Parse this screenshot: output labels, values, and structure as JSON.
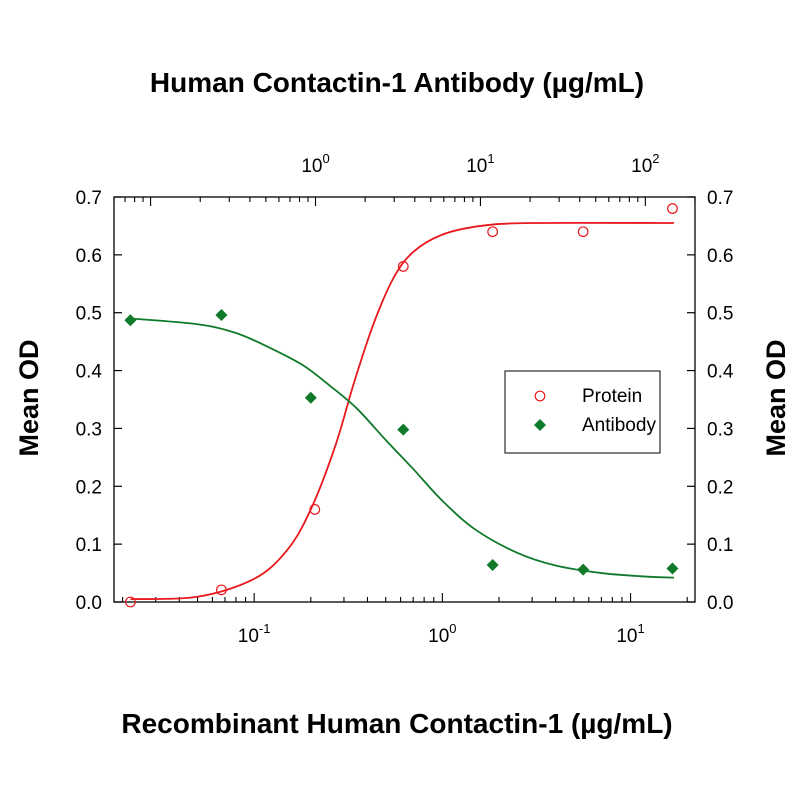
{
  "chart_data": {
    "type": "scatter",
    "title": "Human Contactin-1 Antibody (µg/mL)",
    "xlabel": "Recombinant Human Contactin-1 (µg/mL)",
    "ylabel": "Mean OD",
    "ylabel_right": "Mean OD",
    "x_scale": "log",
    "xlim": [
      0.018,
      22
    ],
    "ylim": [
      0,
      0.7
    ],
    "yticks": [
      "0.0",
      "0.1",
      "0.2",
      "0.3",
      "0.4",
      "0.5",
      "0.6",
      "0.7"
    ],
    "yticks_right": [
      "0.0",
      "0.1",
      "0.2",
      "0.3",
      "0.4",
      "0.5",
      "0.6",
      "0.7"
    ],
    "xticks_bottom": [
      {
        "value": 0.1,
        "base": "10",
        "exp": "-1"
      },
      {
        "value": 1,
        "base": "10",
        "exp": "0"
      },
      {
        "value": 10,
        "base": "10",
        "exp": "1"
      }
    ],
    "top_axis": {
      "scale": "log",
      "xlim": [
        0.06,
        200
      ],
      "xticks": [
        {
          "value": 1,
          "base": "10",
          "exp": "0"
        },
        {
          "value": 10,
          "base": "10",
          "exp": "1"
        },
        {
          "value": 100,
          "base": "10",
          "exp": "2"
        }
      ]
    },
    "legend": {
      "position": "right"
    },
    "series": [
      {
        "name": "Protein",
        "color": "#e8191d",
        "marker": "open-circle",
        "points": [
          {
            "x": 0.022,
            "y": 0.0
          },
          {
            "x": 0.067,
            "y": 0.021
          },
          {
            "x": 0.21,
            "y": 0.16
          },
          {
            "x": 0.62,
            "y": 0.58
          },
          {
            "x": 1.85,
            "y": 0.64
          },
          {
            "x": 5.6,
            "y": 0.64
          },
          {
            "x": 16.7,
            "y": 0.68
          }
        ],
        "fit_curve": [
          {
            "x": 0.022,
            "y": 0.005
          },
          {
            "x": 0.05,
            "y": 0.009
          },
          {
            "x": 0.1,
            "y": 0.04
          },
          {
            "x": 0.15,
            "y": 0.09
          },
          {
            "x": 0.2,
            "y": 0.16
          },
          {
            "x": 0.27,
            "y": 0.27
          },
          {
            "x": 0.34,
            "y": 0.38
          },
          {
            "x": 0.43,
            "y": 0.48
          },
          {
            "x": 0.55,
            "y": 0.56
          },
          {
            "x": 0.7,
            "y": 0.605
          },
          {
            "x": 1.0,
            "y": 0.635
          },
          {
            "x": 1.6,
            "y": 0.65
          },
          {
            "x": 3.0,
            "y": 0.655
          },
          {
            "x": 17,
            "y": 0.655
          }
        ]
      },
      {
        "name": "Antibody",
        "color": "#0e7a2a",
        "marker": "filled-diamond",
        "points": [
          {
            "x": 0.022,
            "y": 0.487
          },
          {
            "x": 0.067,
            "y": 0.496
          },
          {
            "x": 0.2,
            "y": 0.353
          },
          {
            "x": 0.62,
            "y": 0.298
          },
          {
            "x": 1.85,
            "y": 0.064
          },
          {
            "x": 5.6,
            "y": 0.056
          },
          {
            "x": 16.7,
            "y": 0.058
          }
        ],
        "fit_curve": [
          {
            "x": 0.022,
            "y": 0.49
          },
          {
            "x": 0.05,
            "y": 0.48
          },
          {
            "x": 0.08,
            "y": 0.465
          },
          {
            "x": 0.12,
            "y": 0.44
          },
          {
            "x": 0.18,
            "y": 0.41
          },
          {
            "x": 0.25,
            "y": 0.375
          },
          {
            "x": 0.35,
            "y": 0.335
          },
          {
            "x": 0.5,
            "y": 0.28
          },
          {
            "x": 0.7,
            "y": 0.23
          },
          {
            "x": 1.0,
            "y": 0.175
          },
          {
            "x": 1.5,
            "y": 0.125
          },
          {
            "x": 2.5,
            "y": 0.085
          },
          {
            "x": 4.0,
            "y": 0.063
          },
          {
            "x": 7.0,
            "y": 0.05
          },
          {
            "x": 12,
            "y": 0.044
          },
          {
            "x": 17,
            "y": 0.042
          }
        ]
      }
    ]
  }
}
